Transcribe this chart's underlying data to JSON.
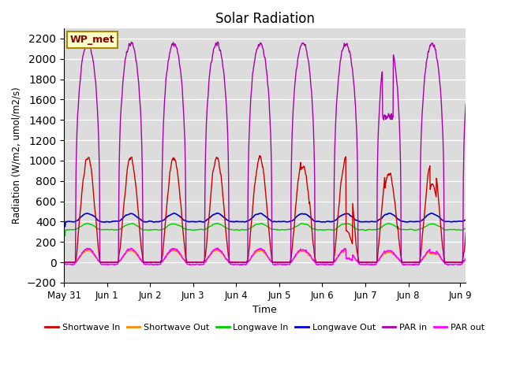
{
  "title": "Solar Radiation",
  "ylabel": "Radiation (W/m2, umol/m2/s)",
  "xlabel": "Time",
  "ylim": [
    -200,
    2300
  ],
  "yticks": [
    -200,
    0,
    200,
    400,
    600,
    800,
    1000,
    1200,
    1400,
    1600,
    1800,
    2000,
    2200
  ],
  "xlim": [
    0,
    9.333
  ],
  "bg_color": "#dcdcdc",
  "annotation_text": "WP_met",
  "annotation_color": "#8b0000",
  "annotation_bg": "#ffffcc",
  "series": {
    "shortwave_in": {
      "color": "#cc0000",
      "label": "Shortwave In"
    },
    "shortwave_out": {
      "color": "#ff8800",
      "label": "Shortwave Out"
    },
    "longwave_in": {
      "color": "#00cc00",
      "label": "Longwave In"
    },
    "longwave_out": {
      "color": "#0000cc",
      "label": "Longwave Out"
    },
    "par_in": {
      "color": "#aa00aa",
      "label": "PAR in"
    },
    "par_out": {
      "color": "#ff00ff",
      "label": "PAR out"
    }
  },
  "xtick_positions": [
    0,
    1,
    2,
    3,
    4,
    5,
    6,
    7,
    8,
    9.2
  ],
  "xtick_labels": [
    "May 31",
    "Jun 1",
    "Jun 2",
    "Jun 3",
    "Jun 4",
    "Jun 5",
    "Jun 6",
    "Jun 7",
    "Jun 8",
    "Jun 9"
  ],
  "figsize": [
    6.4,
    4.8
  ],
  "dpi": 100
}
